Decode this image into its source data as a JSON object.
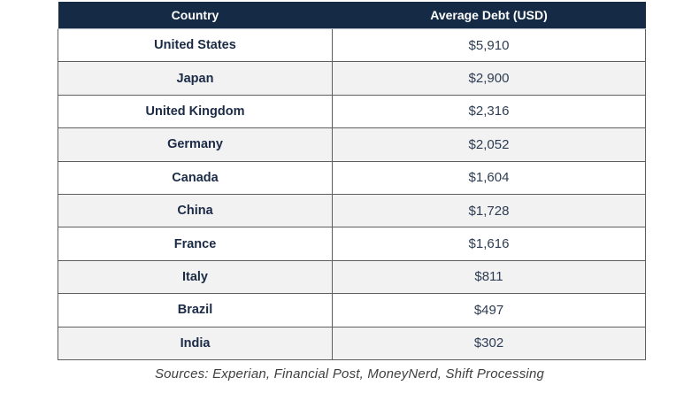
{
  "table": {
    "headers": [
      "Country",
      "Average Debt (USD)"
    ],
    "rows": [
      {
        "country": "United States",
        "debt": "$5,910"
      },
      {
        "country": "Japan",
        "debt": "$2,900"
      },
      {
        "country": "United Kingdom",
        "debt": "$2,316"
      },
      {
        "country": "Germany",
        "debt": "$2,052"
      },
      {
        "country": "Canada",
        "debt": "$1,604"
      },
      {
        "country": "China",
        "debt": "$1,728"
      },
      {
        "country": "France",
        "debt": "$1,616"
      },
      {
        "country": "Italy",
        "debt": "$811"
      },
      {
        "country": "Brazil",
        "debt": "$497"
      },
      {
        "country": "India",
        "debt": "$302"
      }
    ]
  },
  "footer": {
    "sources": "Sources: Experian, Financial Post, MoneyNerd, Shift Processing"
  },
  "colors": {
    "header_bg": "#142a45",
    "header_text": "#ffffff",
    "row_alt_bg": "#f2f2f3",
    "border": "#5f5f5f",
    "cell_text": "#1b2b45",
    "value_text": "#2e3c52",
    "source_text": "#3f3f3f"
  },
  "chart_data": {
    "type": "table",
    "title": "",
    "columns": [
      "Country",
      "Average Debt (USD)"
    ],
    "categories": [
      "United States",
      "Japan",
      "United Kingdom",
      "Germany",
      "Canada",
      "China",
      "France",
      "Italy",
      "Brazil",
      "India"
    ],
    "values": [
      5910,
      2900,
      2316,
      2052,
      1604,
      1728,
      1616,
      811,
      497,
      302
    ],
    "value_unit": "USD",
    "annotations": [
      "Sources: Experian, Financial Post, MoneyNerd, Shift Processing"
    ],
    "layout": {
      "header_style": "dark-navy",
      "alternating_rows": true,
      "grid": true,
      "legend": "none"
    }
  }
}
